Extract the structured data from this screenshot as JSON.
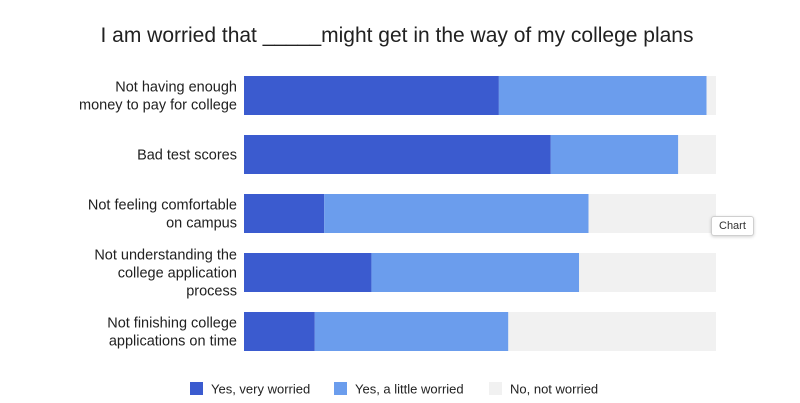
{
  "chart_data": {
    "type": "bar",
    "orientation": "horizontal",
    "stacked": "percent",
    "title": "I am worried that _____might get in the way of my college plans",
    "xlabel": "",
    "ylabel": "",
    "xlim": [
      0,
      100
    ],
    "grid": false,
    "legend_position": "bottom",
    "categories": [
      [
        "Not having enough",
        "money to pay for college"
      ],
      [
        "Bad test scores"
      ],
      [
        "Not feeling comfortable",
        "on campus"
      ],
      [
        "Not understanding the",
        "college application",
        "process"
      ],
      [
        "Not finishing college",
        "applications on time"
      ]
    ],
    "series": [
      {
        "name": "Yes, very worried",
        "color": "#3b5bcf",
        "values": [
          54,
          65,
          17,
          27,
          15
        ]
      },
      {
        "name": "Yes, a little worried",
        "color": "#6b9ded",
        "values": [
          44,
          27,
          56,
          44,
          41
        ]
      },
      {
        "name": "No, not worried",
        "color": "#f1f1f1",
        "values": [
          2,
          8,
          27,
          29,
          44
        ]
      }
    ]
  },
  "tooltip": {
    "label": "Chart"
  }
}
